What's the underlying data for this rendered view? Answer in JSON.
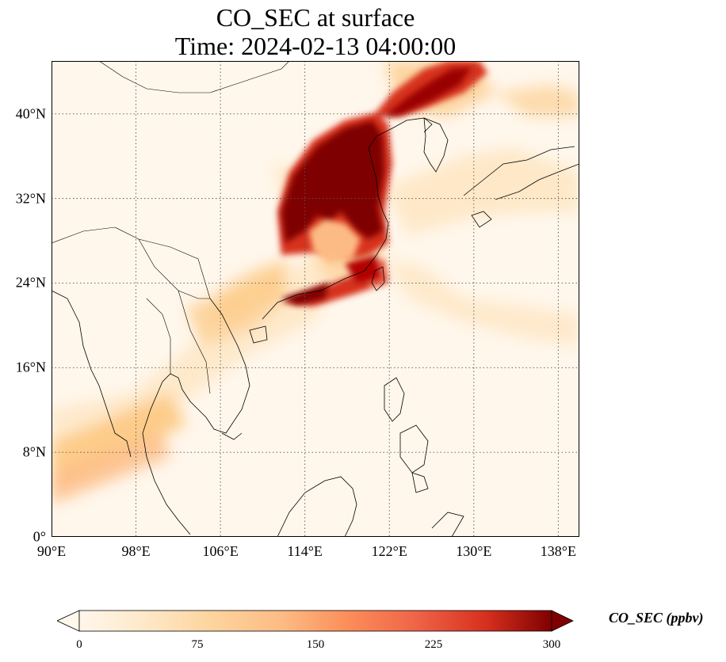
{
  "map": {
    "title_line1": "CO_SEC at surface",
    "title_line2": "Time: 2024-02-13 04:00:00",
    "extent": {
      "lon": [
        90,
        140
      ],
      "lat": [
        0,
        45
      ]
    },
    "lat_ticks": [
      {
        "value": 0,
        "label": "0°"
      },
      {
        "value": 8,
        "label": "8°N"
      },
      {
        "value": 16,
        "label": "16°N"
      },
      {
        "value": 24,
        "label": "24°N"
      },
      {
        "value": 32,
        "label": "32°N"
      },
      {
        "value": 40,
        "label": "40°N"
      }
    ],
    "lon_ticks": [
      {
        "value": 90,
        "label": "90°E"
      },
      {
        "value": 98,
        "label": "98°E"
      },
      {
        "value": 106,
        "label": "106°E"
      },
      {
        "value": 114,
        "label": "114°E"
      },
      {
        "value": 122,
        "label": "122°E"
      },
      {
        "value": 130,
        "label": "130°E"
      },
      {
        "value": 138,
        "label": "138°E"
      }
    ],
    "gridlines": "dotted",
    "colormap": "OrRd",
    "colorbar": {
      "label": "CO_SEC (ppbv)",
      "ticks": [
        "0",
        "75",
        "150",
        "225",
        "300"
      ],
      "range": [
        0,
        300
      ],
      "extend": "both",
      "orientation": "horizontal"
    },
    "colors": {
      "lowest": "#fff7ec",
      "low": "#fdd49e",
      "mid": "#fc8d59",
      "high": "#d7301f",
      "highest": "#7f0000"
    }
  }
}
